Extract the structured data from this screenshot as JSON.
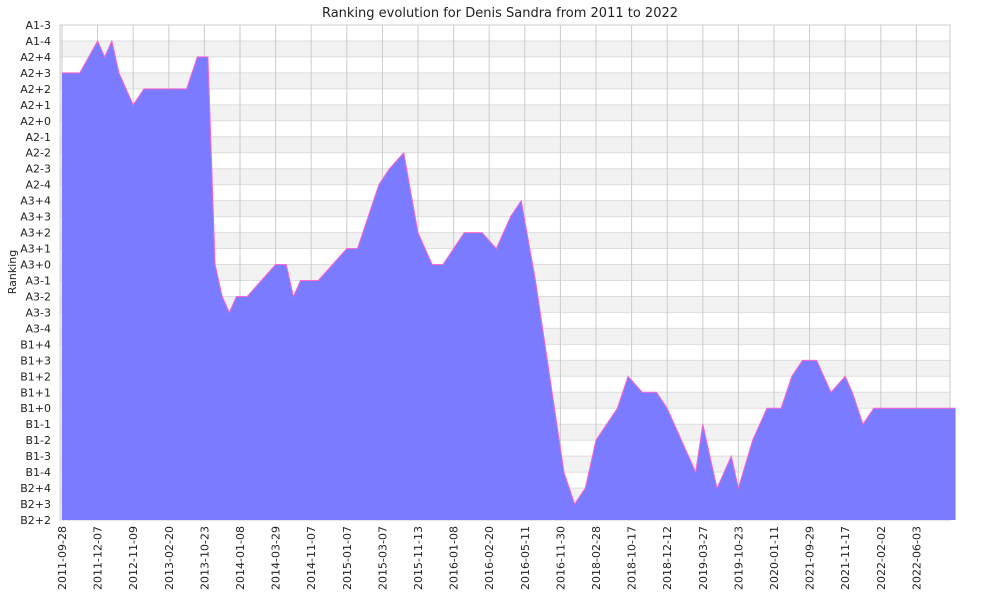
{
  "chart_data": {
    "type": "area",
    "title": "Ranking evolution for Denis Sandra from 2011 to 2022",
    "xlabel": "",
    "ylabel": "Ranking",
    "grid": true,
    "legend": "none",
    "colors": {
      "fill": "#7b7bff",
      "line": "#ff66cc",
      "band": "#f2f2f2",
      "grid": "#cccccc"
    },
    "y_ticks_top_to_bottom": [
      "A1-3",
      "A1-4",
      "A2+4",
      "A2+3",
      "A2+2",
      "A2+1",
      "A2+0",
      "A2-1",
      "A2-2",
      "A2-3",
      "A2-4",
      "A3+4",
      "A3+3",
      "A3+2",
      "A3+1",
      "A3+0",
      "A3-1",
      "A3-2",
      "A3-3",
      "A3-4",
      "B1+4",
      "B1+3",
      "B1+2",
      "B1+1",
      "B1+0",
      "B1-1",
      "B1-2",
      "B1-3",
      "B1-4",
      "B2+4",
      "B2+3",
      "B2+2"
    ],
    "x_ticks": [
      "2011-09-28",
      "2011-12-07",
      "2012-11-09",
      "2013-02-20",
      "2013-10-23",
      "2014-01-08",
      "2014-03-29",
      "2014-11-07",
      "2015-01-07",
      "2015-03-07",
      "2015-11-13",
      "2016-01-08",
      "2016-02-20",
      "2016-05-11",
      "2016-11-30",
      "2018-02-28",
      "2018-10-17",
      "2018-12-12",
      "2019-03-27",
      "2019-10-23",
      "2020-01-11",
      "2021-09-29",
      "2021-11-17",
      "2022-02-02",
      "2022-06-03"
    ],
    "series": [
      {
        "x": [
          0,
          0.5,
          1,
          1.2,
          1.4,
          1.6,
          1.8,
          2,
          2.3,
          2.6,
          2.9,
          3.2,
          3.5,
          3.8,
          4.1,
          4.3,
          4.5,
          4.7,
          4.9,
          5.2,
          5.6,
          6.0,
          6.3,
          6.5,
          6.7,
          6.9,
          7.2,
          7.6,
          8.0,
          8.3,
          8.6,
          8.9,
          9.2,
          9.6,
          10.0,
          10.4,
          10.7,
          11.0,
          11.3,
          11.5,
          11.8,
          12.2,
          12.6,
          12.9,
          13.3,
          13.7,
          14.1,
          14.4,
          14.7,
          15.0,
          15.3,
          15.6,
          15.9,
          16.3,
          16.7,
          17.0,
          17.4,
          17.8,
          18.0,
          18.4,
          18.8,
          19.0,
          19.4,
          19.8,
          20.2,
          20.5,
          20.8,
          21.2,
          21.6,
          22.0,
          22.2,
          22.5,
          22.8,
          23.1,
          23.5,
          23.8,
          24.1,
          24.4,
          24.7,
          25.0,
          25.1
        ],
        "y": [
          "A2+3",
          "A2+3",
          "A1-4",
          "A2+4",
          "A1-4",
          "A2+3",
          "A2+2",
          "A2+1",
          "A2+2",
          "A2+2",
          "A2+2",
          "A2+2",
          "A2+2",
          "A2+4",
          "A2+4",
          "A3+0",
          "A3-2",
          "A3-3",
          "A3-2",
          "A3-2",
          "A3-1",
          "A3+0",
          "A3+0",
          "A3-2",
          "A3-1",
          "A3-1",
          "A3-1",
          "A3+0",
          "A3+1",
          "A3+1",
          "A3+3",
          "A2-4",
          "A2-3",
          "A2-2",
          "A3+2",
          "A3+0",
          "A3+0",
          "A3+1",
          "A3+2",
          "A3+2",
          "A3+2",
          "A3+1",
          "A3+3",
          "A3+4",
          "A3-1",
          "B1+2",
          "B1-4",
          "B2+3",
          "B2+4",
          "B1-2",
          "B1-1",
          "B1+0",
          "B1+2",
          "B1+1",
          "B1+1",
          "B1+0",
          "B1-2",
          "B1-4",
          "B1-1",
          "B2+4",
          "B1-3",
          "B2+4",
          "B1-2",
          "B1+0",
          "B1+0",
          "B1+2",
          "B1+3",
          "B1+3",
          "B1+1",
          "B1+2",
          "B1+1",
          "B1-1",
          "B1+0",
          "B1+0",
          "B1+0",
          "B1+0",
          "B1+0",
          "B1+0",
          "B1+0",
          "B1+0",
          "B1+0"
        ]
      }
    ]
  }
}
